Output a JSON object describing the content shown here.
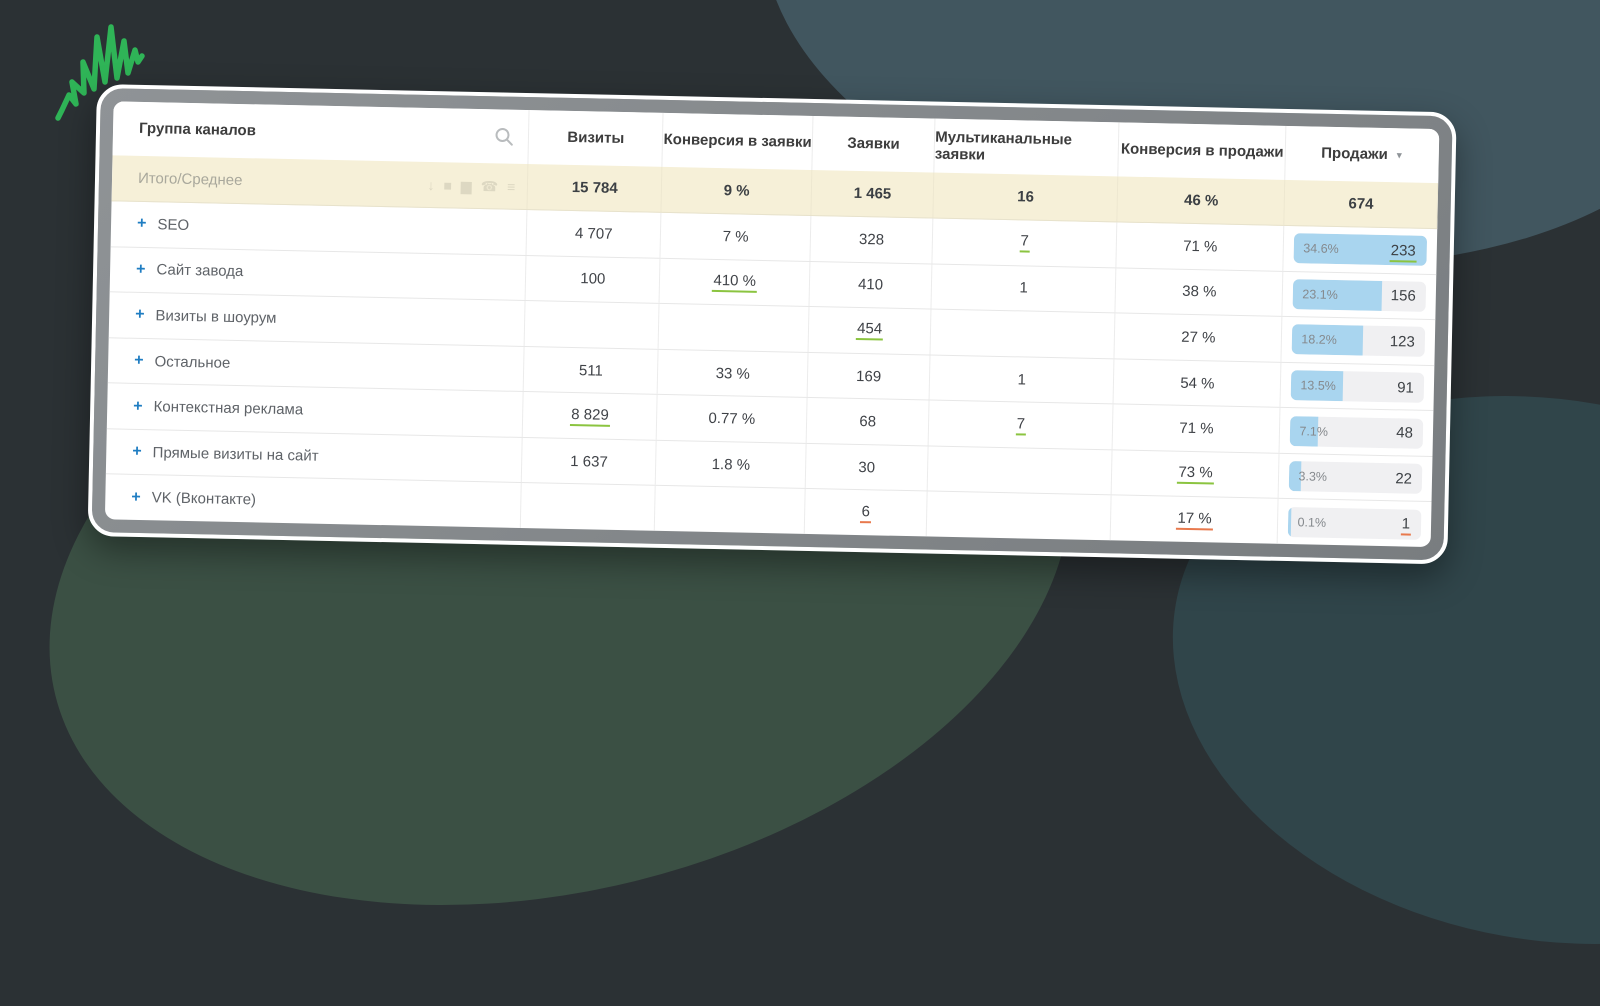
{
  "colors": {
    "background": "#2b3134",
    "blob_green": "#3b5044",
    "blob_teal": "#41565f",
    "blob_dark_teal": "#30454a",
    "squiggle_green": "#2fb457",
    "card_frame_gray": "#85898c",
    "total_row_bg": "#f6f0d8",
    "accent_blue": "#1f7dc2",
    "bar_fill_blue": "#a9d5ef",
    "bar_track_gray": "#f0f0f2",
    "underline_green": "#8bc440",
    "underline_orange": "#e8794d"
  },
  "table": {
    "header": {
      "channel_group": "Группа каналов",
      "columns": [
        "Визиты",
        "Конверсия в заявки",
        "Заявки",
        "Мультиканальные заявки",
        "Конверсия в продажи",
        "Продажи"
      ],
      "sort_indicator": "▼"
    },
    "total": {
      "label": "Итого/Среднее",
      "visits": "15 784",
      "conv_leads": "9 %",
      "leads": "1 465",
      "multi": "16",
      "conv_sales": "46 %",
      "sales": "674",
      "icons": [
        {
          "name": "sort-numeric-icon",
          "glyph": "↓"
        },
        {
          "name": "stop-icon",
          "glyph": "■"
        },
        {
          "name": "area-chart-icon",
          "glyph": "▆"
        },
        {
          "name": "phone-icon",
          "glyph": "☎"
        },
        {
          "name": "list-icon",
          "glyph": "≡"
        }
      ]
    },
    "rows": [
      {
        "name": "SEO",
        "visits": {
          "text": "4 707"
        },
        "conv_leads": {
          "text": "7 %"
        },
        "leads": {
          "text": "328"
        },
        "multi": {
          "text": "7",
          "underline": "green"
        },
        "conv_sales": {
          "text": "71 %"
        },
        "sales": {
          "pct": "34.6%",
          "value": "233",
          "fill": 100,
          "underline": "green"
        }
      },
      {
        "name": "Сайт завода",
        "visits": {
          "text": "100"
        },
        "conv_leads": {
          "text": "410 %",
          "underline": "green"
        },
        "leads": {
          "text": "410"
        },
        "multi": {
          "text": "1"
        },
        "conv_sales": {
          "text": "38 %"
        },
        "sales": {
          "pct": "23.1%",
          "value": "156",
          "fill": 67
        }
      },
      {
        "name": "Визиты в шоурум",
        "visits": {
          "text": ""
        },
        "conv_leads": {
          "text": ""
        },
        "leads": {
          "text": "454",
          "underline": "green"
        },
        "multi": {
          "text": ""
        },
        "conv_sales": {
          "text": "27 %"
        },
        "sales": {
          "pct": "18.2%",
          "value": "123",
          "fill": 53
        }
      },
      {
        "name": "Остальное",
        "visits": {
          "text": "511"
        },
        "conv_leads": {
          "text": "33 %"
        },
        "leads": {
          "text": "169"
        },
        "multi": {
          "text": "1"
        },
        "conv_sales": {
          "text": "54 %"
        },
        "sales": {
          "pct": "13.5%",
          "value": "91",
          "fill": 39
        }
      },
      {
        "name": "Контекстная реклама",
        "visits": {
          "text": "8 829",
          "underline": "green"
        },
        "conv_leads": {
          "text": "0.77 %"
        },
        "leads": {
          "text": "68"
        },
        "multi": {
          "text": "7",
          "underline": "green"
        },
        "conv_sales": {
          "text": "71 %"
        },
        "sales": {
          "pct": "7.1%",
          "value": "48",
          "fill": 21
        }
      },
      {
        "name": "Прямые визиты на сайт",
        "visits": {
          "text": "1 637"
        },
        "conv_leads": {
          "text": "1.8 %"
        },
        "leads": {
          "text": "30"
        },
        "multi": {
          "text": ""
        },
        "conv_sales": {
          "text": "73 %",
          "underline": "green"
        },
        "sales": {
          "pct": "3.3%",
          "value": "22",
          "fill": 9
        }
      },
      {
        "name": "VK (Вконтакте)",
        "visits": {
          "text": ""
        },
        "conv_leads": {
          "text": ""
        },
        "leads": {
          "text": "6",
          "underline": "orange"
        },
        "multi": {
          "text": ""
        },
        "conv_sales": {
          "text": "17 %",
          "underline": "orange"
        },
        "sales": {
          "pct": "0.1%",
          "value": "1",
          "fill": 2,
          "underline": "orange"
        }
      }
    ]
  }
}
